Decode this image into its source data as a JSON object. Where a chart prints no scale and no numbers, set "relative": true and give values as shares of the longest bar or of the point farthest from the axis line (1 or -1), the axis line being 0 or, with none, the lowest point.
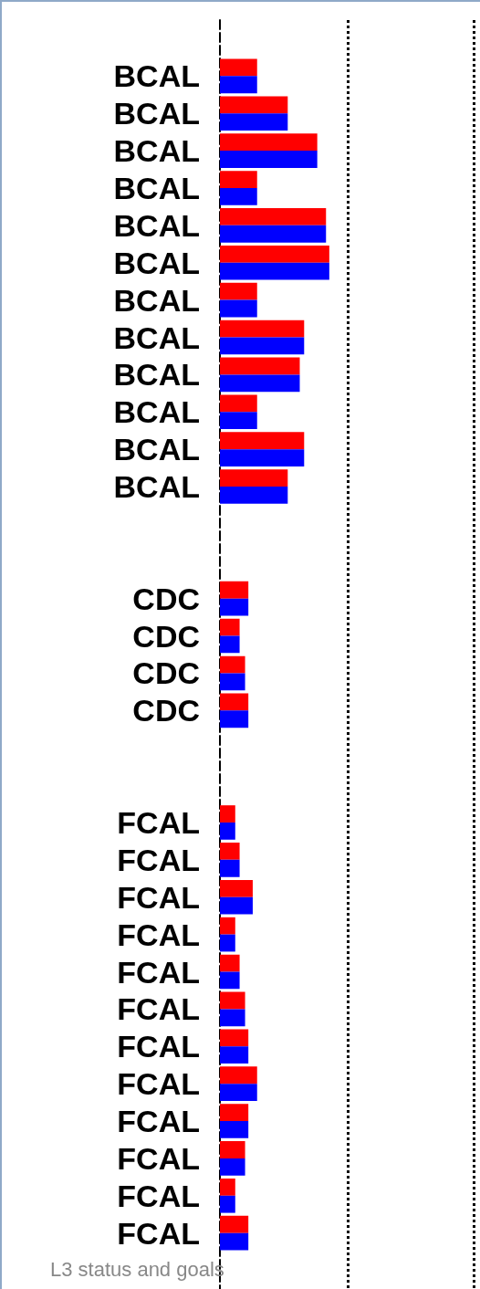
{
  "chart_data": {
    "type": "bar",
    "orientation": "horizontal",
    "relative": true,
    "categories": [
      null,
      "BCAL",
      "BCAL",
      "BCAL",
      "BCAL",
      "BCAL",
      "BCAL",
      "BCAL",
      "BCAL",
      "BCAL",
      "BCAL",
      "BCAL",
      "BCAL",
      null,
      null,
      "CDC",
      "CDC",
      "CDC",
      "CDC",
      null,
      null,
      "FCAL",
      "FCAL",
      "FCAL",
      "FCAL",
      "FCAL",
      "FCAL",
      "FCAL",
      "FCAL",
      "FCAL",
      "FCAL",
      "FCAL",
      "FCAL",
      null
    ],
    "series": [
      {
        "color": "#ff0000",
        "values": [
          null,
          0.34,
          0.62,
          0.89,
          0.34,
          0.97,
          1,
          0.34,
          0.77,
          0.73,
          0.34,
          0.77,
          0.62,
          null,
          null,
          0.26,
          0.18,
          0.23,
          0.26,
          null,
          null,
          0.14,
          0.18,
          0.3,
          0.14,
          0.18,
          0.23,
          0.26,
          0.34,
          0.26,
          0.23,
          0.14,
          0.26,
          null
        ]
      },
      {
        "color": "#0000ff",
        "values": [
          null,
          0.34,
          0.62,
          0.89,
          0.34,
          0.97,
          1,
          0.34,
          0.77,
          0.73,
          0.34,
          0.77,
          0.62,
          null,
          null,
          0.26,
          0.18,
          0.23,
          0.26,
          null,
          null,
          0.14,
          0.18,
          0.3,
          0.14,
          0.18,
          0.23,
          0.26,
          0.34,
          0.26,
          0.23,
          0.14,
          0.26,
          null
        ]
      }
    ],
    "ref_lines": [
      {
        "axis": "x",
        "value": 1.17,
        "line_style": "dotted",
        "color": "#000000"
      },
      {
        "axis": "x",
        "value": 2.32,
        "line_style": "dotted",
        "color": "#000000"
      }
    ],
    "annotations": [
      "L3 status and goals"
    ]
  }
}
